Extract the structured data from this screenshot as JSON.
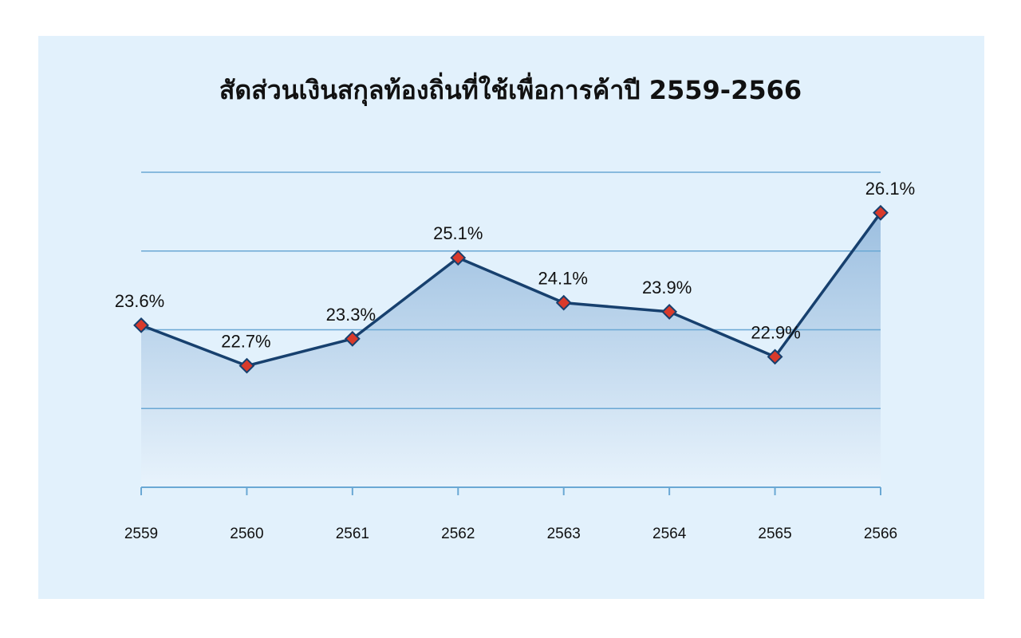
{
  "chart_data": {
    "type": "area",
    "title": "สัดส่วนเงินสกุลท้องถิ่นที่ใช้เพื่อการค้าปี 2559-2566",
    "xlabel": "",
    "ylabel": "",
    "categories": [
      "2559",
      "2560",
      "2561",
      "2562",
      "2563",
      "2564",
      "2565",
      "2566"
    ],
    "values": [
      23.6,
      22.7,
      23.3,
      25.1,
      24.1,
      23.9,
      22.9,
      26.1
    ],
    "data_labels": [
      "23.6%",
      "22.7%",
      "23.3%",
      "25.1%",
      "24.1%",
      "23.9%",
      "22.9%",
      "26.1%"
    ],
    "unit": "%",
    "ylim": [
      20,
      27
    ],
    "grid": true,
    "colors": {
      "background": "#e2f1fc",
      "line": "#17406e",
      "marker_fill": "#d93a2b",
      "gridline": "#6aa8d4",
      "area_top": "#9cbfe0"
    }
  }
}
